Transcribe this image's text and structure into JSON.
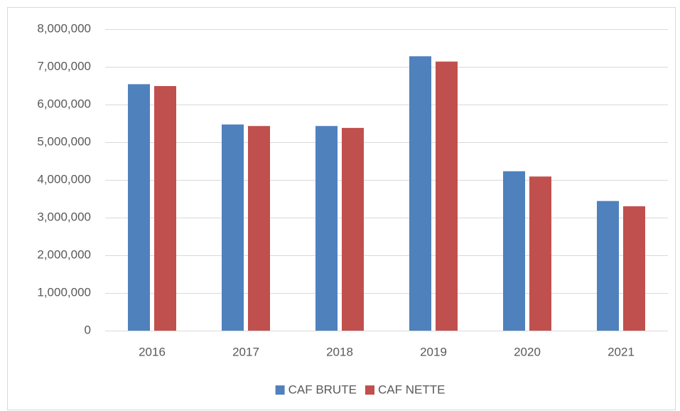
{
  "chart_data": {
    "type": "bar",
    "categories": [
      "2016",
      "2017",
      "2018",
      "2019",
      "2020",
      "2021"
    ],
    "series": [
      {
        "name": "CAF BRUTE",
        "color": "#4f81bd",
        "values": [
          6540000,
          5470000,
          5430000,
          7280000,
          4230000,
          3440000
        ]
      },
      {
        "name": "CAF NETTE",
        "color": "#c0504d",
        "values": [
          6490000,
          5430000,
          5380000,
          7140000,
          4090000,
          3300000
        ]
      }
    ],
    "ylim": [
      0,
      8000000
    ],
    "yticks": [
      0,
      {
        "value": 1000000,
        "label": "1,000,000"
      },
      {
        "value": 2000000,
        "label": "2,000,000"
      },
      {
        "value": 3000000,
        "label": "3,000,000"
      },
      {
        "value": 4000000,
        "label": "4,000,000"
      },
      {
        "value": 5000000,
        "label": "5,000,000"
      },
      {
        "value": 6000000,
        "label": "6,000,000"
      },
      {
        "value": 7000000,
        "label": "7,000,000"
      },
      {
        "value": 8000000,
        "label": "8,000,000"
      }
    ],
    "grid": true,
    "legend": "bottom"
  }
}
